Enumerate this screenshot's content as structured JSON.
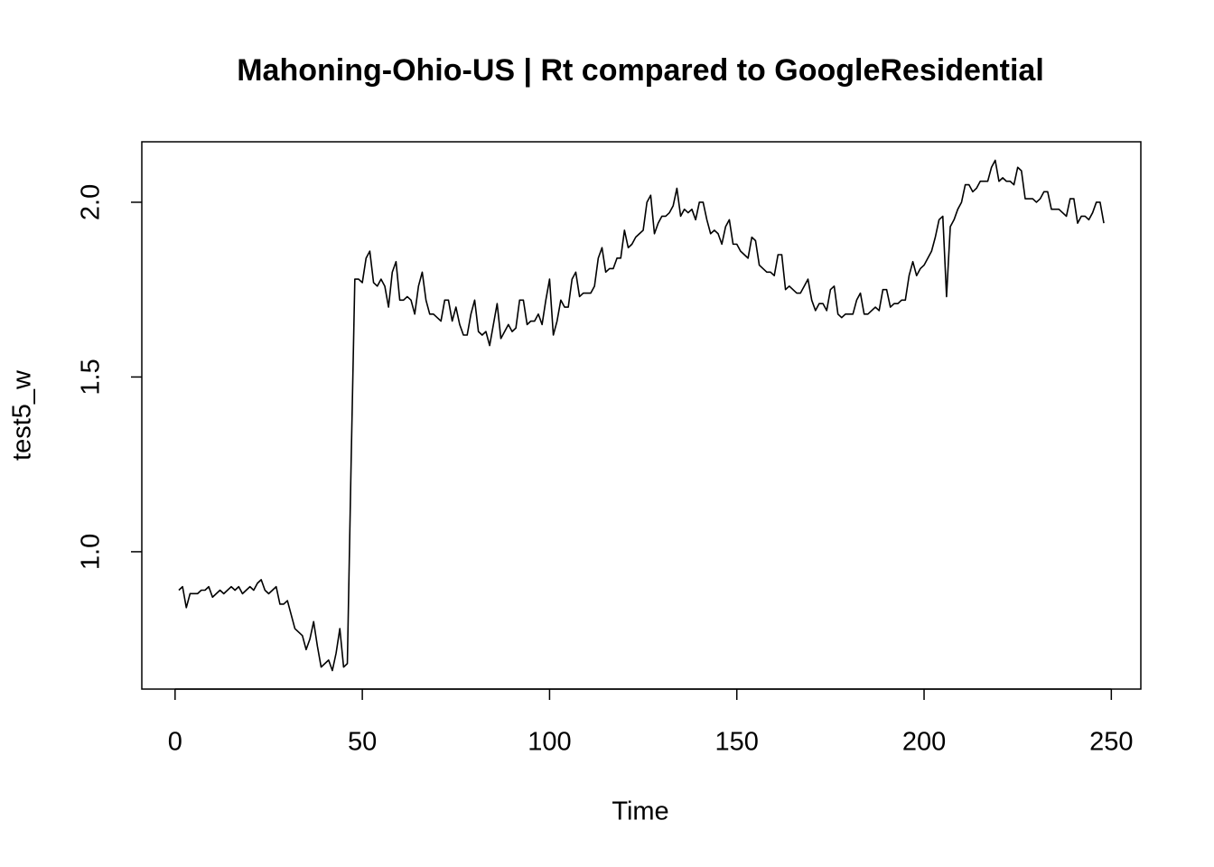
{
  "chart_data": {
    "type": "line",
    "title": "Mahoning-Ohio-US | Rt compared to GoogleResidential",
    "xlabel": "Time",
    "ylabel": "test5_w",
    "x": [
      1,
      2,
      3,
      4,
      5,
      6,
      7,
      8,
      9,
      10,
      11,
      12,
      13,
      14,
      15,
      16,
      17,
      18,
      19,
      20,
      21,
      22,
      23,
      24,
      25,
      26,
      27,
      28,
      29,
      30,
      31,
      32,
      33,
      34,
      35,
      36,
      37,
      38,
      39,
      40,
      41,
      42,
      43,
      44,
      45,
      46,
      47,
      48,
      49,
      50,
      51,
      52,
      53,
      54,
      55,
      56,
      57,
      58,
      59,
      60,
      61,
      62,
      63,
      64,
      65,
      66,
      67,
      68,
      69,
      70,
      71,
      72,
      73,
      74,
      75,
      76,
      77,
      78,
      79,
      80,
      81,
      82,
      83,
      84,
      85,
      86,
      87,
      88,
      89,
      90,
      91,
      92,
      93,
      94,
      95,
      96,
      97,
      98,
      99,
      100,
      101,
      102,
      103,
      104,
      105,
      106,
      107,
      108,
      109,
      110,
      111,
      112,
      113,
      114,
      115,
      116,
      117,
      118,
      119,
      120,
      121,
      122,
      123,
      124,
      125,
      126,
      127,
      128,
      129,
      130,
      131,
      132,
      133,
      134,
      135,
      136,
      137,
      138,
      139,
      140,
      141,
      142,
      143,
      144,
      145,
      146,
      147,
      148,
      149,
      150,
      151,
      152,
      153,
      154,
      155,
      156,
      157,
      158,
      159,
      160,
      161,
      162,
      163,
      164,
      165,
      166,
      167,
      168,
      169,
      170,
      171,
      172,
      173,
      174,
      175,
      176,
      177,
      178,
      179,
      180,
      181,
      182,
      183,
      184,
      185,
      186,
      187,
      188,
      189,
      190,
      191,
      192,
      193,
      194,
      195,
      196,
      197,
      198,
      199,
      200,
      201,
      202,
      203,
      204,
      205,
      206,
      207,
      208,
      209,
      210,
      211,
      212,
      213,
      214,
      215,
      216,
      217,
      218,
      219,
      220,
      221,
      222,
      223,
      224,
      225,
      226,
      227,
      228,
      229,
      230,
      231,
      232,
      233,
      234,
      235,
      236,
      237,
      238,
      239,
      240,
      241,
      242,
      243,
      244,
      245,
      246,
      247,
      248
    ],
    "series": [
      {
        "color": "#000000",
        "values": [
          0.89,
          0.9,
          0.84,
          0.88,
          0.88,
          0.88,
          0.89,
          0.89,
          0.9,
          0.87,
          0.88,
          0.89,
          0.88,
          0.89,
          0.9,
          0.89,
          0.9,
          0.88,
          0.89,
          0.9,
          0.89,
          0.91,
          0.92,
          0.89,
          0.88,
          0.89,
          0.9,
          0.85,
          0.85,
          0.86,
          0.82,
          0.78,
          0.77,
          0.76,
          0.72,
          0.75,
          0.8,
          0.73,
          0.67,
          0.68,
          0.69,
          0.66,
          0.71,
          0.78,
          0.67,
          0.68,
          1.25,
          1.78,
          1.78,
          1.77,
          1.84,
          1.86,
          1.77,
          1.76,
          1.78,
          1.76,
          1.7,
          1.8,
          1.83,
          1.72,
          1.72,
          1.73,
          1.72,
          1.68,
          1.76,
          1.8,
          1.72,
          1.68,
          1.68,
          1.67,
          1.66,
          1.72,
          1.72,
          1.66,
          1.7,
          1.65,
          1.62,
          1.62,
          1.68,
          1.72,
          1.63,
          1.62,
          1.63,
          1.59,
          1.65,
          1.71,
          1.61,
          1.63,
          1.65,
          1.63,
          1.64,
          1.72,
          1.72,
          1.65,
          1.66,
          1.66,
          1.68,
          1.65,
          1.72,
          1.78,
          1.62,
          1.66,
          1.72,
          1.7,
          1.7,
          1.78,
          1.8,
          1.73,
          1.74,
          1.74,
          1.74,
          1.76,
          1.84,
          1.87,
          1.8,
          1.81,
          1.81,
          1.84,
          1.84,
          1.92,
          1.87,
          1.88,
          1.9,
          1.91,
          1.92,
          2.0,
          2.02,
          1.91,
          1.94,
          1.96,
          1.96,
          1.97,
          1.99,
          2.04,
          1.96,
          1.98,
          1.97,
          1.98,
          1.95,
          2.0,
          2.0,
          1.95,
          1.91,
          1.92,
          1.91,
          1.88,
          1.93,
          1.95,
          1.88,
          1.88,
          1.86,
          1.85,
          1.84,
          1.9,
          1.89,
          1.82,
          1.81,
          1.8,
          1.8,
          1.79,
          1.85,
          1.85,
          1.75,
          1.76,
          1.75,
          1.74,
          1.74,
          1.76,
          1.78,
          1.72,
          1.69,
          1.71,
          1.71,
          1.69,
          1.75,
          1.76,
          1.68,
          1.67,
          1.68,
          1.68,
          1.68,
          1.72,
          1.74,
          1.68,
          1.68,
          1.69,
          1.7,
          1.69,
          1.75,
          1.75,
          1.7,
          1.71,
          1.71,
          1.72,
          1.72,
          1.79,
          1.83,
          1.79,
          1.81,
          1.82,
          1.84,
          1.86,
          1.9,
          1.95,
          1.96,
          1.73,
          1.93,
          1.95,
          1.98,
          2.0,
          2.05,
          2.05,
          2.03,
          2.04,
          2.06,
          2.06,
          2.06,
          2.1,
          2.12,
          2.06,
          2.07,
          2.06,
          2.06,
          2.05,
          2.1,
          2.09,
          2.01,
          2.01,
          2.01,
          2.0,
          2.01,
          2.03,
          2.03,
          1.98,
          1.98,
          1.98,
          1.97,
          1.96,
          2.01,
          2.01,
          1.94,
          1.96,
          1.96,
          1.95,
          1.97,
          2.0,
          2.0,
          1.94
        ]
      }
    ],
    "xlim": [
      -8.88,
      257.88
    ],
    "xticks": [
      0,
      50,
      100,
      150,
      200,
      250
    ],
    "ylim": [
      0.607,
      2.173
    ],
    "yticks": [
      {
        "value": 1,
        "label": "1.0"
      },
      {
        "value": 1.5,
        "label": "1.5"
      },
      {
        "value": 2,
        "label": "2.0"
      }
    ]
  }
}
